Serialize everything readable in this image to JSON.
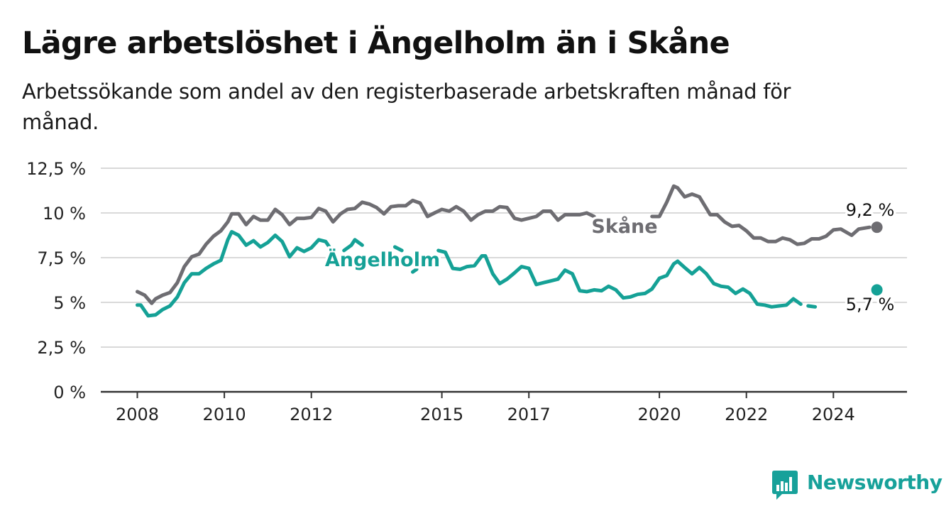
{
  "header": {
    "title": "Lägre arbetslöshet i Ängelholm än i Skåne",
    "subtitle": "Arbetssökande som andel av den registerbaserade arbetskraften månad för månad."
  },
  "logo": {
    "text": "Newsworthy",
    "icon": "bar-chart-chat-icon",
    "color": "#17a19a"
  },
  "colors": {
    "skane": "#6e6d72",
    "angelholm": "#15a196",
    "grid": "#d9d9d9",
    "axis": "#333333"
  },
  "chart_data": {
    "type": "line",
    "ylim": [
      0,
      12.5
    ],
    "xlim": [
      2008,
      2025.9
    ],
    "grid": true,
    "y_ticks": [
      {
        "value": 0,
        "label": "0 %"
      },
      {
        "value": 2.5,
        "label": "2,5 %"
      },
      {
        "value": 5,
        "label": "5 %"
      },
      {
        "value": 7.5,
        "label": "7,5 %"
      },
      {
        "value": 10,
        "label": "10 %"
      },
      {
        "value": 12.5,
        "label": "12,5 %"
      }
    ],
    "x_ticks": [
      {
        "value": 2008,
        "label": "2008"
      },
      {
        "value": 2010,
        "label": "2010"
      },
      {
        "value": 2012,
        "label": "2012"
      },
      {
        "value": 2015,
        "label": "2015"
      },
      {
        "value": 2017,
        "label": "2017"
      },
      {
        "value": 2020,
        "label": "2020"
      },
      {
        "value": 2022,
        "label": "2022"
      },
      {
        "value": 2024,
        "label": "2024"
      }
    ],
    "series": [
      {
        "name": "Skåne",
        "last_value_label": "9,2 %",
        "points": [
          [
            2008.0,
            5.6
          ],
          [
            2008.17,
            5.4
          ],
          [
            2008.33,
            4.95
          ],
          [
            2008.42,
            5.2
          ],
          [
            2008.58,
            5.4
          ],
          [
            2008.75,
            5.55
          ],
          [
            2008.92,
            6.1
          ],
          [
            2009.08,
            7.0
          ],
          [
            2009.25,
            7.55
          ],
          [
            2009.42,
            7.7
          ],
          [
            2009.58,
            8.25
          ],
          [
            2009.75,
            8.7
          ],
          [
            2009.92,
            9.0
          ],
          [
            2010.08,
            9.5
          ],
          [
            2010.17,
            9.95
          ],
          [
            2010.33,
            9.95
          ],
          [
            2010.5,
            9.35
          ],
          [
            2010.67,
            9.8
          ],
          [
            2010.83,
            9.6
          ],
          [
            2011.0,
            9.6
          ],
          [
            2011.17,
            10.2
          ],
          [
            2011.33,
            9.9
          ],
          [
            2011.5,
            9.35
          ],
          [
            2011.67,
            9.7
          ],
          [
            2011.83,
            9.7
          ],
          [
            2012.0,
            9.75
          ],
          [
            2012.17,
            10.25
          ],
          [
            2012.33,
            10.1
          ],
          [
            2012.5,
            9.5
          ],
          [
            2012.67,
            9.95
          ],
          [
            2012.83,
            10.2
          ],
          [
            2013.0,
            10.25
          ],
          [
            2013.17,
            10.6
          ],
          [
            2013.33,
            10.5
          ],
          [
            2013.5,
            10.3
          ],
          [
            2013.67,
            9.95
          ],
          [
            2013.83,
            10.35
          ],
          [
            2014.0,
            10.4
          ],
          [
            2014.17,
            10.4
          ],
          [
            2014.33,
            10.7
          ],
          [
            2014.5,
            10.55
          ],
          [
            2014.67,
            9.8
          ],
          [
            2014.83,
            10.0
          ],
          [
            2015.0,
            10.2
          ],
          [
            2015.17,
            10.1
          ],
          [
            2015.33,
            10.35
          ],
          [
            2015.5,
            10.1
          ],
          [
            2015.67,
            9.6
          ],
          [
            2015.83,
            9.9
          ],
          [
            2016.0,
            10.1
          ],
          [
            2016.17,
            10.1
          ],
          [
            2016.33,
            10.35
          ],
          [
            2016.5,
            10.3
          ],
          [
            2016.67,
            9.7
          ],
          [
            2016.83,
            9.6
          ],
          [
            2017.0,
            9.7
          ],
          [
            2017.17,
            9.8
          ],
          [
            2017.33,
            10.1
          ],
          [
            2017.5,
            10.1
          ],
          [
            2017.67,
            9.6
          ],
          [
            2017.83,
            9.9
          ],
          [
            2018.0,
            9.9
          ],
          [
            2018.17,
            9.9
          ],
          [
            2018.33,
            10.0
          ],
          [
            2018.5,
            9.8
          ],
          [
            2018.67,
            9.2
          ],
          [
            2019.83,
            9.8
          ],
          [
            2020.0,
            9.8
          ],
          [
            2020.17,
            10.6
          ],
          [
            2020.33,
            11.5
          ],
          [
            2020.42,
            11.4
          ],
          [
            2020.58,
            10.9
          ],
          [
            2020.75,
            11.05
          ],
          [
            2020.92,
            10.9
          ],
          [
            2021.17,
            9.9
          ],
          [
            2021.33,
            9.9
          ],
          [
            2021.5,
            9.5
          ],
          [
            2021.67,
            9.25
          ],
          [
            2021.83,
            9.3
          ],
          [
            2022.0,
            9.0
          ],
          [
            2022.17,
            8.6
          ],
          [
            2022.33,
            8.6
          ],
          [
            2022.5,
            8.4
          ],
          [
            2022.67,
            8.4
          ],
          [
            2022.83,
            8.6
          ],
          [
            2023.0,
            8.5
          ],
          [
            2023.17,
            8.25
          ],
          [
            2023.33,
            8.3
          ],
          [
            2023.5,
            8.55
          ],
          [
            2023.67,
            8.55
          ],
          [
            2023.83,
            8.7
          ],
          [
            2024.0,
            9.05
          ],
          [
            2024.17,
            9.1
          ],
          [
            2024.42,
            8.75
          ],
          [
            2024.58,
            9.1
          ],
          [
            2024.83,
            9.2
          ]
        ],
        "last_point": [
          2025.0,
          9.2
        ]
      },
      {
        "name": "Ängelholm",
        "last_value_label": "5,7 %",
        "points": [
          [
            2008.0,
            4.85
          ],
          [
            2008.08,
            4.85
          ],
          [
            2008.25,
            4.25
          ],
          [
            2008.42,
            4.3
          ],
          [
            2008.58,
            4.6
          ],
          [
            2008.75,
            4.8
          ],
          [
            2008.92,
            5.3
          ],
          [
            2009.08,
            6.1
          ],
          [
            2009.25,
            6.6
          ],
          [
            2009.42,
            6.6
          ],
          [
            2009.58,
            6.9
          ],
          [
            2009.75,
            7.15
          ],
          [
            2009.92,
            7.35
          ],
          [
            2010.08,
            8.5
          ],
          [
            2010.17,
            8.95
          ],
          [
            2010.33,
            8.75
          ],
          [
            2010.5,
            8.2
          ],
          [
            2010.67,
            8.45
          ],
          [
            2010.83,
            8.1
          ],
          [
            2011.0,
            8.35
          ],
          [
            2011.17,
            8.75
          ],
          [
            2011.33,
            8.4
          ],
          [
            2011.5,
            7.55
          ],
          [
            2011.67,
            8.05
          ],
          [
            2011.83,
            7.85
          ],
          [
            2012.0,
            8.05
          ],
          [
            2012.17,
            8.5
          ],
          [
            2012.33,
            8.4
          ],
          [
            2012.5,
            7.8
          ],
          [
            2012.75,
            7.9
          ],
          [
            2012.92,
            8.2
          ],
          [
            2013.0,
            8.5
          ],
          [
            2013.17,
            8.2
          ],
          [
            2013.92,
            8.1
          ],
          [
            2014.08,
            7.9
          ],
          [
            2014.33,
            6.7
          ],
          [
            2014.42,
            6.85
          ],
          [
            2014.92,
            7.9
          ],
          [
            2015.08,
            7.8
          ],
          [
            2015.25,
            6.9
          ],
          [
            2015.42,
            6.85
          ],
          [
            2015.58,
            7.0
          ],
          [
            2015.75,
            7.05
          ],
          [
            2015.92,
            7.6
          ],
          [
            2016.0,
            7.6
          ],
          [
            2016.17,
            6.6
          ],
          [
            2016.33,
            6.05
          ],
          [
            2016.5,
            6.3
          ],
          [
            2016.67,
            6.65
          ],
          [
            2016.83,
            7.0
          ],
          [
            2017.0,
            6.9
          ],
          [
            2017.17,
            6.0
          ],
          [
            2017.33,
            6.1
          ],
          [
            2017.5,
            6.2
          ],
          [
            2017.67,
            6.3
          ],
          [
            2017.83,
            6.8
          ],
          [
            2018.0,
            6.6
          ],
          [
            2018.17,
            5.65
          ],
          [
            2018.33,
            5.6
          ],
          [
            2018.5,
            5.7
          ],
          [
            2018.67,
            5.65
          ],
          [
            2018.83,
            5.9
          ],
          [
            2019.0,
            5.7
          ],
          [
            2019.17,
            5.25
          ],
          [
            2019.33,
            5.3
          ],
          [
            2019.5,
            5.45
          ],
          [
            2019.67,
            5.5
          ],
          [
            2019.83,
            5.75
          ],
          [
            2020.0,
            6.35
          ],
          [
            2020.17,
            6.5
          ],
          [
            2020.33,
            7.15
          ],
          [
            2020.42,
            7.3
          ],
          [
            2020.58,
            6.95
          ],
          [
            2020.75,
            6.6
          ],
          [
            2020.92,
            6.95
          ],
          [
            2021.08,
            6.6
          ],
          [
            2021.25,
            6.05
          ],
          [
            2021.42,
            5.9
          ],
          [
            2021.58,
            5.85
          ],
          [
            2021.75,
            5.5
          ],
          [
            2021.92,
            5.75
          ],
          [
            2022.08,
            5.5
          ],
          [
            2022.25,
            4.9
          ],
          [
            2022.42,
            4.85
          ],
          [
            2022.58,
            4.75
          ],
          [
            2022.75,
            4.8
          ],
          [
            2022.92,
            4.85
          ],
          [
            2023.08,
            5.2
          ],
          [
            2023.25,
            4.9
          ],
          [
            2023.42,
            4.8
          ],
          [
            2023.58,
            4.75
          ],
          [
            2023.75,
            4.8
          ],
          [
            2023.92,
            5.2
          ],
          [
            2024.08,
            5.7
          ],
          [
            2024.25,
            5.55
          ],
          [
            2024.42,
            5.0
          ],
          [
            2024.75,
            5.4
          ],
          [
            2024.83,
            5.4
          ]
        ],
        "last_point": [
          2025.0,
          5.7
        ]
      }
    ]
  }
}
